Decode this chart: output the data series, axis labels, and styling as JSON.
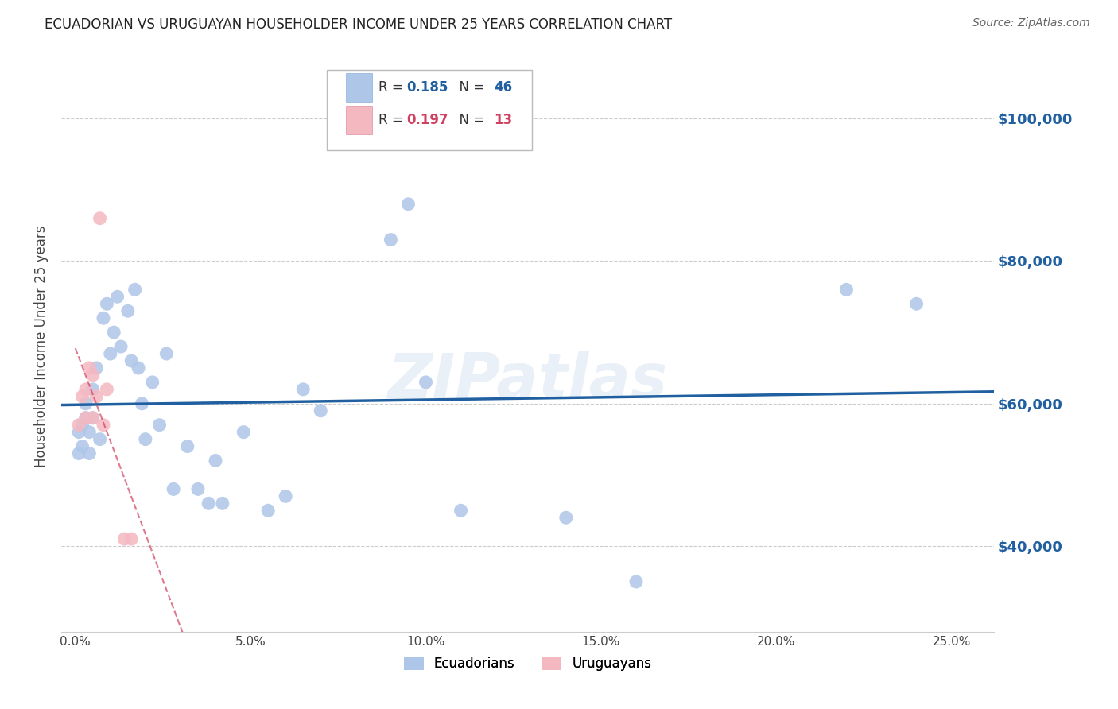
{
  "title": "ECUADORIAN VS URUGUAYAN HOUSEHOLDER INCOME UNDER 25 YEARS CORRELATION CHART",
  "source": "Source: ZipAtlas.com",
  "ylabel": "Householder Income Under 25 years",
  "xlabel_ticks": [
    "0.0%",
    "5.0%",
    "10.0%",
    "15.0%",
    "20.0%",
    "25.0%"
  ],
  "xlabel_vals": [
    0.0,
    0.05,
    0.1,
    0.15,
    0.2,
    0.25
  ],
  "ylabel_ticks": [
    "$40,000",
    "$60,000",
    "$80,000",
    "$100,000"
  ],
  "ylabel_vals": [
    40000,
    60000,
    80000,
    100000
  ],
  "ylim": [
    28000,
    108000
  ],
  "xlim": [
    -0.004,
    0.262
  ],
  "watermark": "ZIPatlas",
  "ec_R": 0.185,
  "ec_N": 46,
  "ur_R": 0.197,
  "ur_N": 13,
  "ecuadorian_x": [
    0.001,
    0.001,
    0.002,
    0.002,
    0.003,
    0.003,
    0.004,
    0.004,
    0.005,
    0.005,
    0.006,
    0.007,
    0.008,
    0.009,
    0.01,
    0.011,
    0.012,
    0.013,
    0.015,
    0.016,
    0.017,
    0.018,
    0.019,
    0.02,
    0.022,
    0.024,
    0.026,
    0.028,
    0.032,
    0.035,
    0.038,
    0.04,
    0.042,
    0.048,
    0.055,
    0.06,
    0.065,
    0.07,
    0.09,
    0.095,
    0.1,
    0.11,
    0.14,
    0.16,
    0.22,
    0.24
  ],
  "ecuadorian_y": [
    56000,
    53000,
    57000,
    54000,
    60000,
    58000,
    56000,
    53000,
    62000,
    58000,
    65000,
    55000,
    72000,
    74000,
    67000,
    70000,
    75000,
    68000,
    73000,
    66000,
    76000,
    65000,
    60000,
    55000,
    63000,
    57000,
    67000,
    48000,
    54000,
    48000,
    46000,
    52000,
    46000,
    56000,
    45000,
    47000,
    62000,
    59000,
    83000,
    88000,
    63000,
    45000,
    44000,
    35000,
    76000,
    74000
  ],
  "uruguayan_x": [
    0.001,
    0.002,
    0.003,
    0.003,
    0.004,
    0.005,
    0.005,
    0.006,
    0.007,
    0.008,
    0.009,
    0.014,
    0.016
  ],
  "uruguayan_y": [
    57000,
    61000,
    62000,
    58000,
    65000,
    64000,
    58000,
    61000,
    86000,
    57000,
    62000,
    41000,
    41000
  ],
  "bg_color": "#ffffff",
  "ec_color": "#aec6e8",
  "ur_color": "#f4b8c1",
  "ec_line_color": "#2060a0",
  "ur_line_color": "#d04060",
  "grid_color": "#cccccc",
  "title_color": "#222222",
  "right_label_color": "#2060a0",
  "legend_text_color": "#555555",
  "legend_val_color_ec": "#2060a0",
  "legend_val_color_ur": "#d04060"
}
